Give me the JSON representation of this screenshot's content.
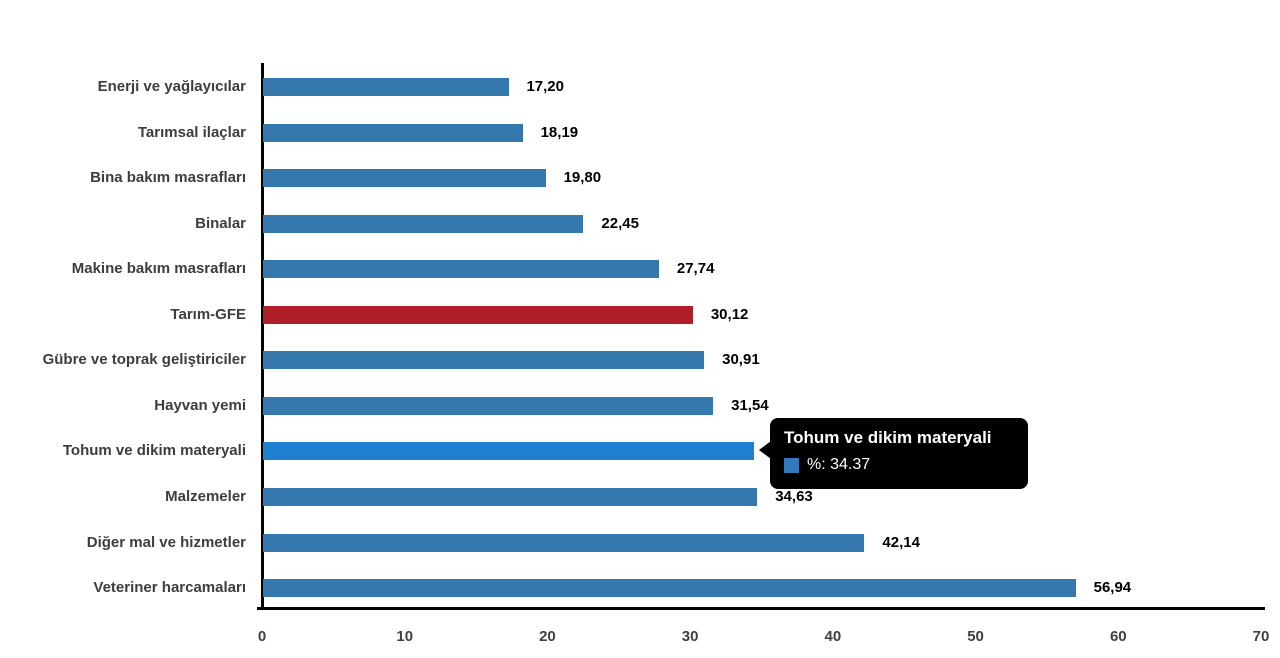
{
  "chart_data": {
    "type": "bar",
    "orientation": "horizontal",
    "title": "",
    "xlabel": "",
    "ylabel": "",
    "grid": false,
    "legend": false,
    "xlim": [
      0,
      70
    ],
    "x_ticks": [
      "0",
      "10",
      "20",
      "30",
      "40",
      "50",
      "60",
      "70"
    ],
    "categories": [
      "Enerji  ve yağlayıcılar",
      "Tarımsal ilaçlar",
      "Bina bakım masrafları",
      "Binalar",
      "Makine bakım masrafları",
      "Tarım-GFE",
      "Gübre ve toprak geliştiriciler",
      "Hayvan yemi",
      "Tohum ve dikim materyali",
      "Malzemeler",
      "Diğer mal ve hizmetler",
      "Veteriner harcamaları"
    ],
    "values": [
      17.2,
      18.19,
      19.8,
      22.45,
      27.74,
      30.12,
      30.91,
      31.54,
      34.37,
      34.63,
      42.14,
      56.94
    ],
    "value_labels": [
      "17,20",
      "18,19",
      "19,80",
      "22,45",
      "27,74",
      "30,12",
      "30,91",
      "31,54",
      "34,37",
      "34,63",
      "42,14",
      "56,94"
    ],
    "highlight_category": "Tarım-GFE",
    "hovered_category": "Tohum ve dikim materyali"
  },
  "tooltip": {
    "title": "Tohum ve dikim materyali",
    "value_text": "%: 34.37",
    "swatch_color": "#3178bc"
  },
  "colors": {
    "bar_blue": "#3478ae",
    "bar_blue_hover": "#1f7fd1",
    "bar_red": "#b01f28",
    "axis": "#000000",
    "tick_label": "#404040",
    "category_label": "#3d3d3d",
    "value_label": "#000000",
    "background": "#ffffff",
    "tooltip_bg": "#000000",
    "tooltip_text": "#ffffff"
  }
}
